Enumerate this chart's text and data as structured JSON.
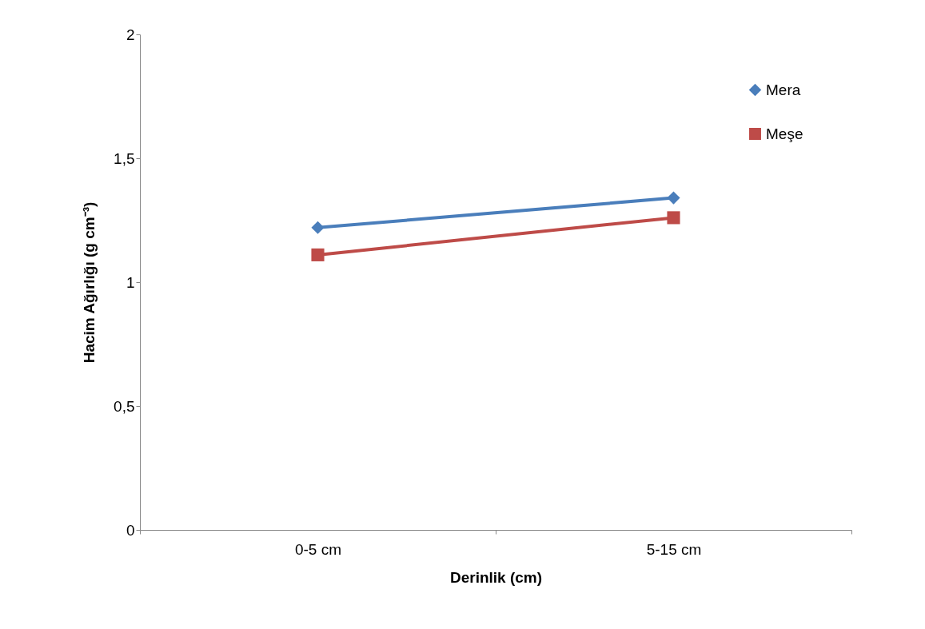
{
  "chart_data": {
    "type": "line",
    "xlabel": "Derinlik (cm)",
    "ylabel": "Hacim Ağırlığı (g cm⁻³)",
    "categories": [
      "0-5 cm",
      "5-15 cm"
    ],
    "series": [
      {
        "name": "Mera",
        "color": "#4a7ebb",
        "marker": "diamond",
        "values": [
          1.22,
          1.34
        ]
      },
      {
        "name": "Meşe",
        "color": "#be4b48",
        "marker": "square",
        "values": [
          1.11,
          1.26
        ]
      }
    ],
    "ylim": [
      0,
      2
    ],
    "yticks": [
      0,
      {
        "value": 0.5,
        "label": "0,5"
      },
      1,
      {
        "value": 1.5,
        "label": "1,5"
      },
      2
    ],
    "grid": false,
    "legend": "top right",
    "line_style": "solid"
  }
}
